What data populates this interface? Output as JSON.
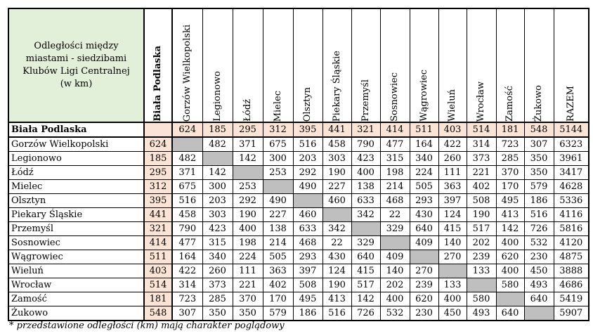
{
  "table": {
    "corner_lines": [
      "Odległości między",
      "miastami - siedzibami",
      "Klubów Ligi Centralnej",
      "(w km)"
    ],
    "column_headers": [
      "Biała Podlaska",
      "Gorzów Wielkopolski",
      "Legionowo",
      "Łódź",
      "Mielec",
      "Olsztyn",
      "Piekary Śląskie",
      "Przemyśl",
      "Sosnowiec",
      "Wągrowiec",
      "Wieluń",
      "Wrocław",
      "Zamość",
      "Żukowo",
      "RAZEM"
    ],
    "rows": [
      {
        "city": "Biała Podlaska",
        "cells": [
          "",
          "624",
          "185",
          "295",
          "312",
          "395",
          "441",
          "321",
          "414",
          "511",
          "403",
          "514",
          "181",
          "548"
        ],
        "total": "5144"
      },
      {
        "city": "Gorzów Wielkopolski",
        "cells": [
          "624",
          "",
          "482",
          "371",
          "675",
          "516",
          "458",
          "790",
          "477",
          "164",
          "422",
          "314",
          "723",
          "307"
        ],
        "total": "6323"
      },
      {
        "city": "Legionowo",
        "cells": [
          "185",
          "482",
          "",
          "142",
          "300",
          "203",
          "303",
          "423",
          "315",
          "340",
          "260",
          "373",
          "285",
          "350"
        ],
        "total": "3961"
      },
      {
        "city": "Łódź",
        "cells": [
          "295",
          "371",
          "142",
          "",
          "253",
          "292",
          "190",
          "400",
          "198",
          "224",
          "111",
          "221",
          "370",
          "350"
        ],
        "total": "3417"
      },
      {
        "city": "Mielec",
        "cells": [
          "312",
          "675",
          "300",
          "253",
          "",
          "490",
          "227",
          "138",
          "214",
          "505",
          "363",
          "402",
          "170",
          "579"
        ],
        "total": "4628"
      },
      {
        "city": "Olsztyn",
        "cells": [
          "395",
          "516",
          "203",
          "292",
          "490",
          "",
          "460",
          "633",
          "468",
          "293",
          "397",
          "508",
          "495",
          "186"
        ],
        "total": "5336"
      },
      {
        "city": "Piekary Śląskie",
        "cells": [
          "441",
          "458",
          "303",
          "190",
          "227",
          "460",
          "",
          "342",
          "22",
          "430",
          "124",
          "190",
          "413",
          "516"
        ],
        "total": "4116"
      },
      {
        "city": "Przemyśl",
        "cells": [
          "321",
          "790",
          "423",
          "400",
          "138",
          "633",
          "342",
          "",
          "329",
          "640",
          "415",
          "517",
          "142",
          "726"
        ],
        "total": "5816"
      },
      {
        "city": "Sosnowiec",
        "cells": [
          "414",
          "477",
          "315",
          "198",
          "214",
          "468",
          "22",
          "329",
          "",
          "409",
          "140",
          "202",
          "400",
          "532"
        ],
        "total": "4120"
      },
      {
        "city": "Wągrowiec",
        "cells": [
          "511",
          "164",
          "340",
          "224",
          "505",
          "293",
          "430",
          "640",
          "409",
          "",
          "270",
          "239",
          "620",
          "230"
        ],
        "total": "4875"
      },
      {
        "city": "Wieluń",
        "cells": [
          "403",
          "422",
          "260",
          "111",
          "363",
          "397",
          "124",
          "415",
          "140",
          "270",
          "",
          "133",
          "400",
          "450"
        ],
        "total": "3888"
      },
      {
        "city": "Wrocław",
        "cells": [
          "514",
          "314",
          "373",
          "221",
          "402",
          "508",
          "190",
          "517",
          "202",
          "239",
          "133",
          "",
          "580",
          "493"
        ],
        "total": "4686"
      },
      {
        "city": "Zamość",
        "cells": [
          "181",
          "723",
          "285",
          "370",
          "170",
          "495",
          "413",
          "142",
          "400",
          "620",
          "400",
          "580",
          "",
          "640"
        ],
        "total": "5419"
      },
      {
        "city": "Żukowo",
        "cells": [
          "548",
          "307",
          "350",
          "350",
          "579",
          "186",
          "516",
          "726",
          "532",
          "230",
          "450",
          "493",
          "640",
          ""
        ],
        "total": "5907"
      }
    ]
  },
  "note": "* przedstawione odległości (km) mają charakter poglądowy",
  "colors": {
    "corner_bg": "#e2efd9",
    "highlight_bg": "#fbe4d5",
    "diagonal_gray": "#bfbfbf"
  }
}
